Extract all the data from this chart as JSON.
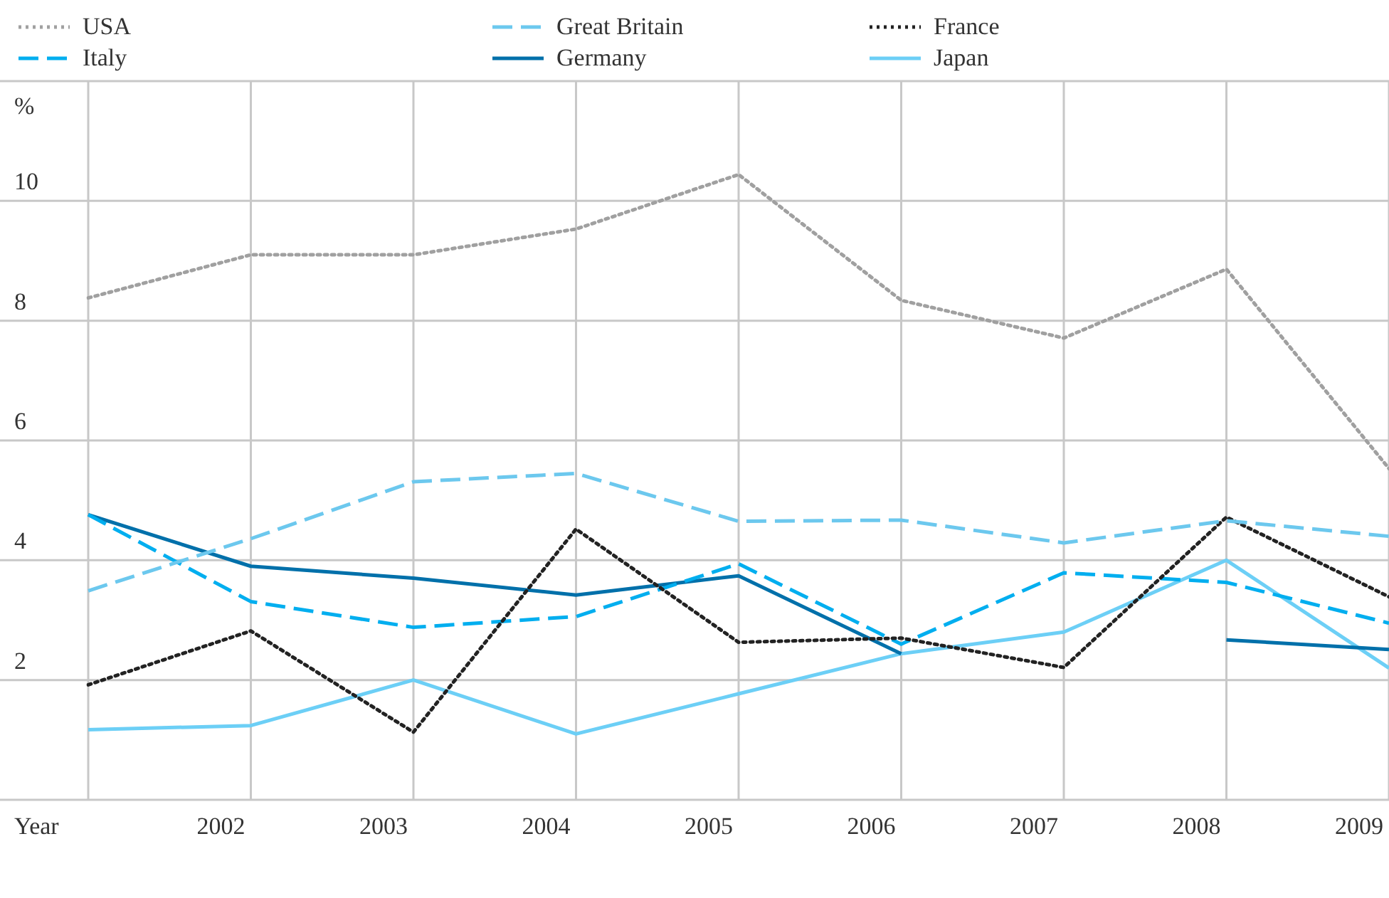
{
  "chart_data": {
    "type": "line",
    "xlabel": "Year",
    "ylabel": "%",
    "categories": [
      null,
      "2002",
      "2003",
      "2004",
      "2005",
      "2006",
      "2007",
      "2008",
      "2009"
    ],
    "series": [
      {
        "name": "USA",
        "color": "#a0a0a0",
        "line_style": "dotted",
        "values": [
          8.38,
          9.1,
          9.1,
          9.53,
          10.44,
          8.34,
          7.71,
          8.86,
          5.53
        ]
      },
      {
        "name": "Great Britain",
        "color": "#6cc8ee",
        "line_style": "dashed",
        "values": [
          3.49,
          4.36,
          5.31,
          5.45,
          4.65,
          4.67,
          4.29,
          4.66,
          4.4
        ]
      },
      {
        "name": "France",
        "color": "#222222",
        "line_style": "dotted",
        "values": [
          1.92,
          2.82,
          1.13,
          4.52,
          2.63,
          2.7,
          2.21,
          4.72,
          3.39
        ]
      },
      {
        "name": "Italy",
        "color": "#00aeef",
        "line_style": "dashed",
        "values": [
          4.76,
          3.31,
          2.88,
          3.06,
          3.94,
          2.6,
          3.79,
          3.63,
          2.95
        ]
      },
      {
        "name": "Germany",
        "color": "#0070aa",
        "line_style": "solid",
        "values": [
          4.76,
          3.9,
          3.7,
          3.42,
          3.74,
          2.44,
          null,
          2.67,
          2.51
        ]
      },
      {
        "name": "Japan",
        "color": "#6ccff6",
        "line_style": "solid",
        "values": [
          1.17,
          1.24,
          2.0,
          1.1,
          1.77,
          2.44,
          2.8,
          4.0,
          2.2
        ]
      }
    ],
    "ylim": [
      0,
      12
    ],
    "yticks": [
      {
        "value": 0,
        "label": null
      },
      2,
      4,
      6,
      8,
      10,
      {
        "value": 12,
        "label": null
      }
    ],
    "grid": true,
    "legend": "top",
    "marker": "none"
  }
}
